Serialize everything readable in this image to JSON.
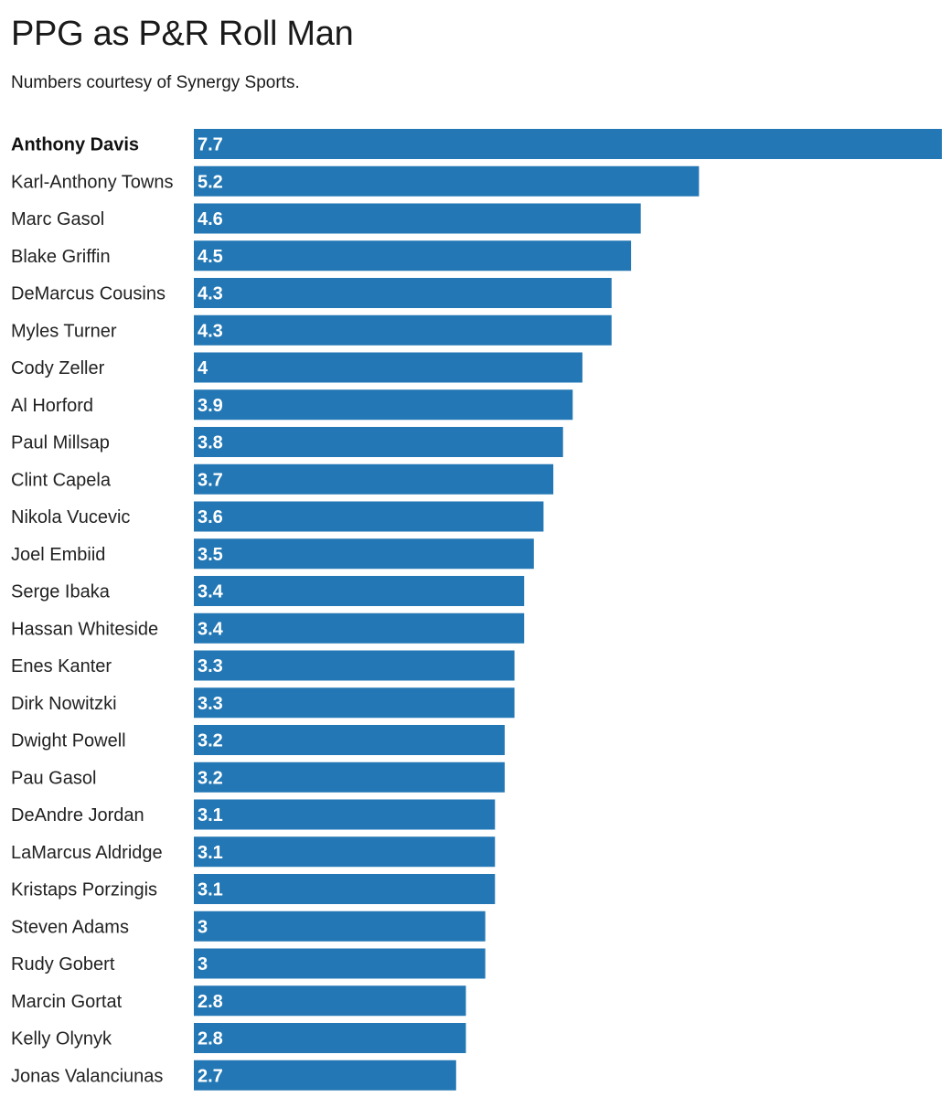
{
  "chart_data": {
    "type": "bar",
    "orientation": "horizontal",
    "title": "PPG as P&R Roll Man",
    "subtitle": "Numbers courtesy of Synergy Sports.",
    "xlabel": "",
    "ylabel": "",
    "xlim": [
      0,
      7.7
    ],
    "grid": false,
    "bar_color": "#2277b4",
    "highlight_category": "Anthony Davis",
    "categories": [
      "Anthony Davis",
      "Karl-Anthony Towns",
      "Marc Gasol",
      "Blake Griffin",
      "DeMarcus Cousins",
      "Myles Turner",
      "Cody Zeller",
      "Al Horford",
      "Paul Millsap",
      "Clint Capela",
      "Nikola Vucevic",
      "Joel Embiid",
      "Serge Ibaka",
      "Hassan Whiteside",
      "Enes Kanter",
      "Dirk Nowitzki",
      "Dwight Powell",
      "Pau Gasol",
      "DeAndre Jordan",
      "LaMarcus Aldridge",
      "Kristaps Porzingis",
      "Steven Adams",
      "Rudy Gobert",
      "Marcin Gortat",
      "Kelly Olynyk",
      "Jonas Valanciunas"
    ],
    "values": [
      7.7,
      5.2,
      4.6,
      4.5,
      4.3,
      4.3,
      4,
      3.9,
      3.8,
      3.7,
      3.6,
      3.5,
      3.4,
      3.4,
      3.3,
      3.3,
      3.2,
      3.2,
      3.1,
      3.1,
      3.1,
      3,
      3,
      2.8,
      2.8,
      2.7
    ],
    "value_labels": [
      "7.7",
      "5.2",
      "4.6",
      "4.5",
      "4.3",
      "4.3",
      "4",
      "3.9",
      "3.8",
      "3.7",
      "3.6",
      "3.5",
      "3.4",
      "3.4",
      "3.3",
      "3.3",
      "3.2",
      "3.2",
      "3.1",
      "3.1",
      "3.1",
      "3",
      "3",
      "2.8",
      "2.8",
      "2.7"
    ]
  }
}
